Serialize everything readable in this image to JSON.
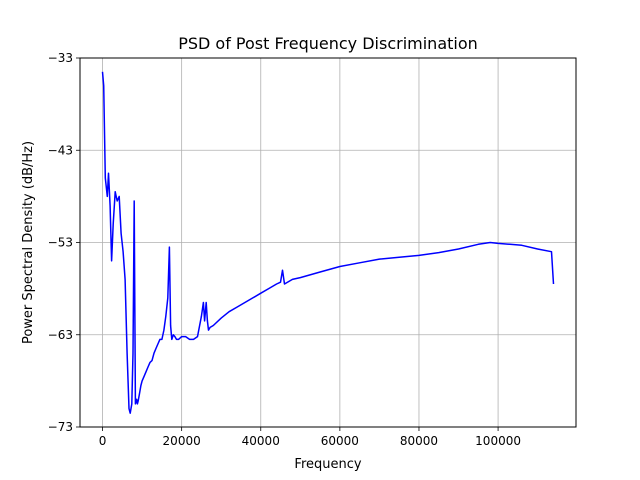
{
  "chart_data": {
    "type": "line",
    "title": "PSD of Post Frequency Discrimination",
    "xlabel": "Frequency",
    "ylabel": "Power Spectral Density (dB/Hz)",
    "xlim": [
      -5700,
      119700
    ],
    "ylim": [
      -73,
      -33
    ],
    "xticks": [
      0,
      20000,
      40000,
      60000,
      80000,
      100000
    ],
    "xtick_labels": [
      "0",
      "20000",
      "40000",
      "60000",
      "80000",
      "100000"
    ],
    "yticks": [
      -33,
      -43,
      -53,
      -63,
      -73
    ],
    "ytick_labels": [
      "−33",
      "−43",
      "−53",
      "−63",
      "−73"
    ],
    "grid": true,
    "series": [
      {
        "color": "#0000ff",
        "x": [
          0,
          300,
          700,
          1200,
          1500,
          1900,
          2300,
          2700,
          3200,
          3700,
          4200,
          4700,
          5200,
          5700,
          6200,
          6700,
          7000,
          7400,
          7700,
          8000,
          8300,
          8600,
          8800,
          9000,
          9300,
          9700,
          10000,
          10500,
          11000,
          11500,
          12000,
          12500,
          13000,
          13500,
          14000,
          14500,
          15000,
          15500,
          16000,
          16500,
          16900,
          17200,
          17500,
          17900,
          18300,
          18700,
          19200,
          20000,
          21000,
          22000,
          23000,
          24000,
          25000,
          25500,
          25800,
          26200,
          26500,
          26800,
          27200,
          28000,
          30000,
          32000,
          34000,
          36000,
          38000,
          40000,
          42000,
          44000,
          45000,
          45500,
          46000,
          48000,
          50000,
          55000,
          60000,
          65000,
          70000,
          75000,
          80000,
          85000,
          90000,
          95000,
          98000,
          100000,
          103000,
          106000,
          110000,
          113500,
          114000
        ],
        "y": [
          -34.5,
          -36,
          -46,
          -48,
          -45.5,
          -49,
          -55,
          -51,
          -47.5,
          -48.5,
          -48,
          -52,
          -54,
          -57,
          -65,
          -71,
          -71.5,
          -70.5,
          -65,
          -48.5,
          -70.5,
          -70,
          -70.5,
          -70.2,
          -69.5,
          -68.5,
          -68,
          -67.5,
          -67,
          -66.5,
          -66,
          -65.8,
          -65,
          -64.5,
          -64,
          -63.5,
          -63.5,
          -62.5,
          -61,
          -59,
          -53.5,
          -62,
          -63.5,
          -63,
          -63.2,
          -63.5,
          -63.5,
          -63.2,
          -63.2,
          -63.5,
          -63.5,
          -63.2,
          -61,
          -59.5,
          -61.5,
          -59.5,
          -61.5,
          -62.5,
          -62.2,
          -62,
          -61.2,
          -60.5,
          -60,
          -59.5,
          -59,
          -58.5,
          -58,
          -57.5,
          -57.3,
          -56,
          -57.5,
          -57,
          -56.8,
          -56.2,
          -55.6,
          -55.2,
          -54.8,
          -54.6,
          -54.4,
          -54.1,
          -53.7,
          -53.2,
          -53,
          -53.1,
          -53.2,
          -53.3,
          -53.7,
          -54,
          -57.5
        ]
      }
    ]
  }
}
